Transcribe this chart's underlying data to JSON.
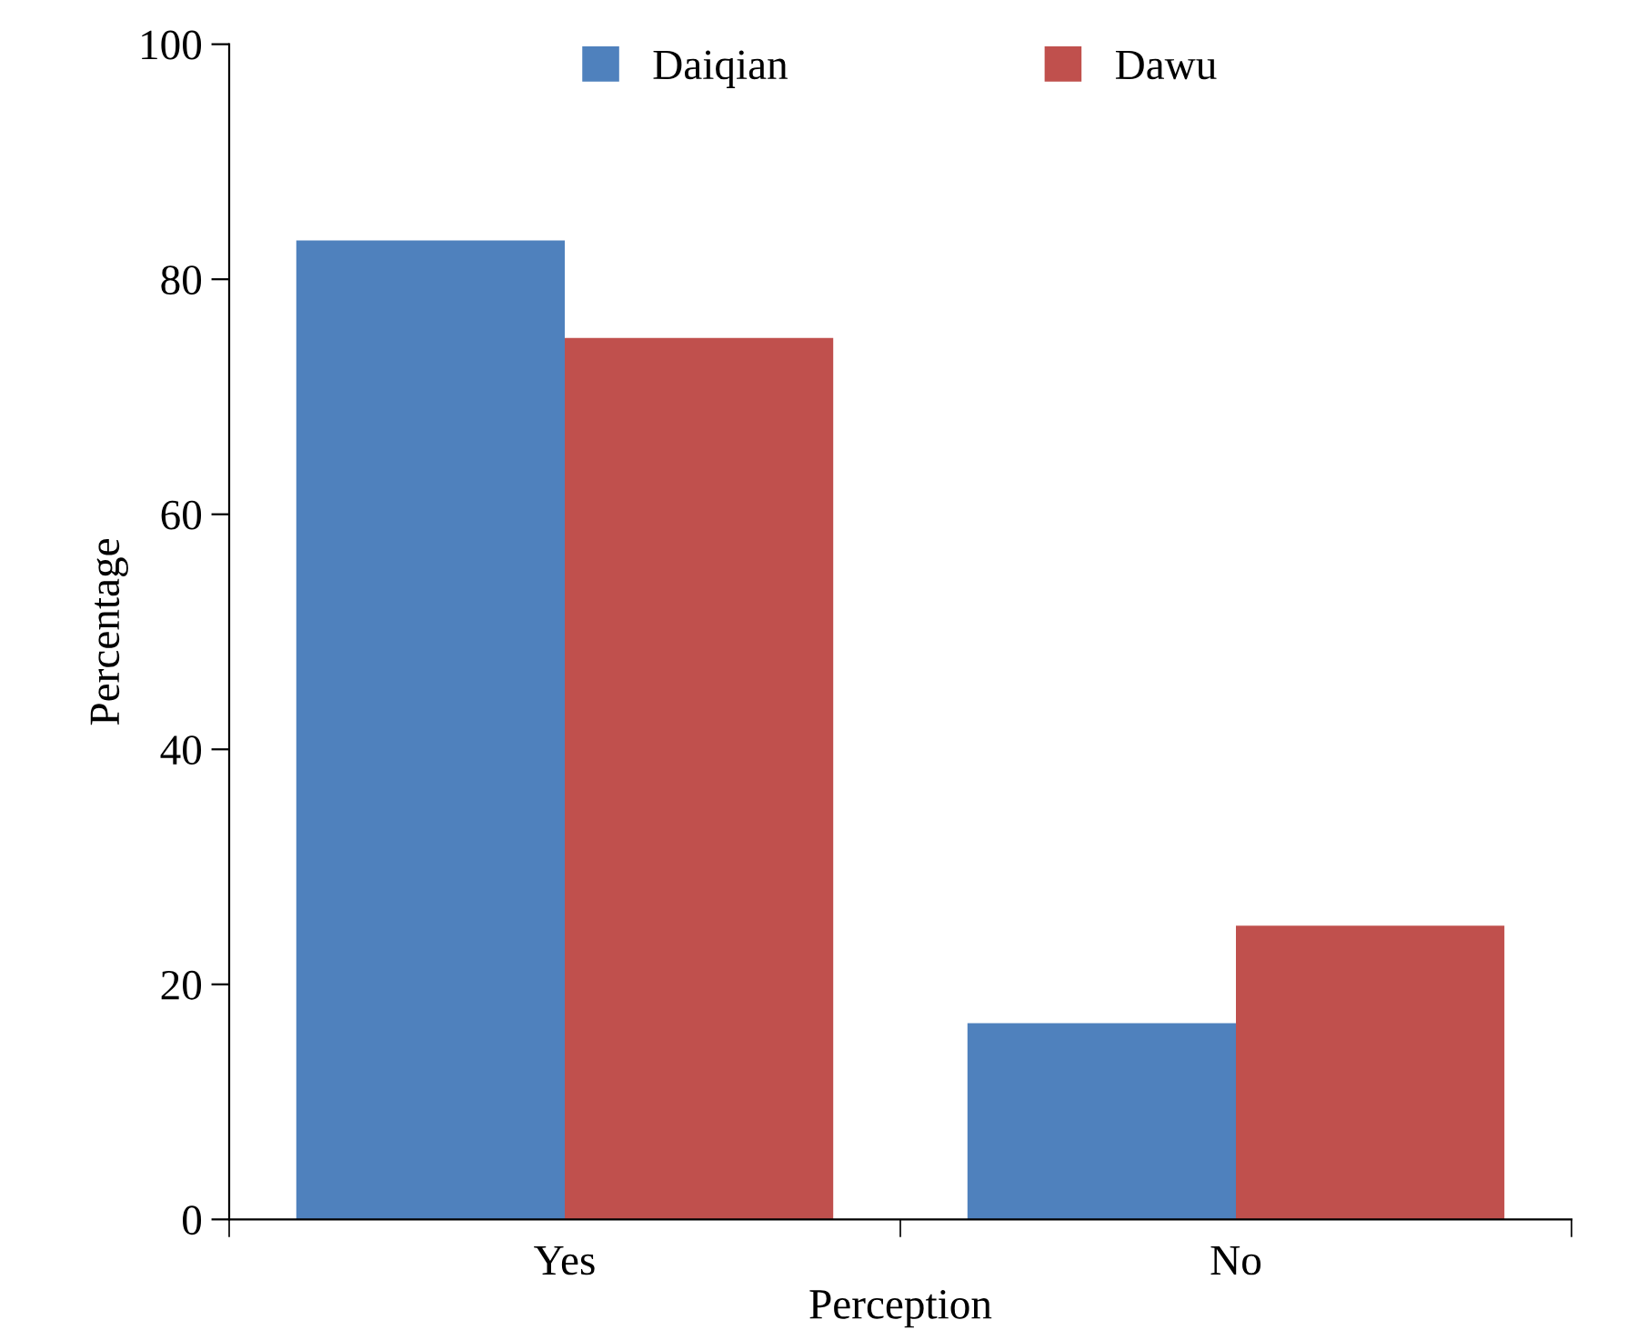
{
  "chart_data": {
    "type": "bar",
    "xlabel": "Perception",
    "ylabel": "Percentage",
    "categories": [
      "Yes",
      "No"
    ],
    "series": [
      {
        "name": "Daiqian",
        "color": "#4f81bd",
        "values": [
          83.3,
          16.7
        ]
      },
      {
        "name": "Dawu",
        "color": "#c0504d",
        "values": [
          75,
          25
        ]
      }
    ],
    "ylim": [
      0,
      100
    ],
    "yticks": [
      0,
      20,
      40,
      60,
      80,
      100
    ],
    "grid": false,
    "legend": "top"
  }
}
